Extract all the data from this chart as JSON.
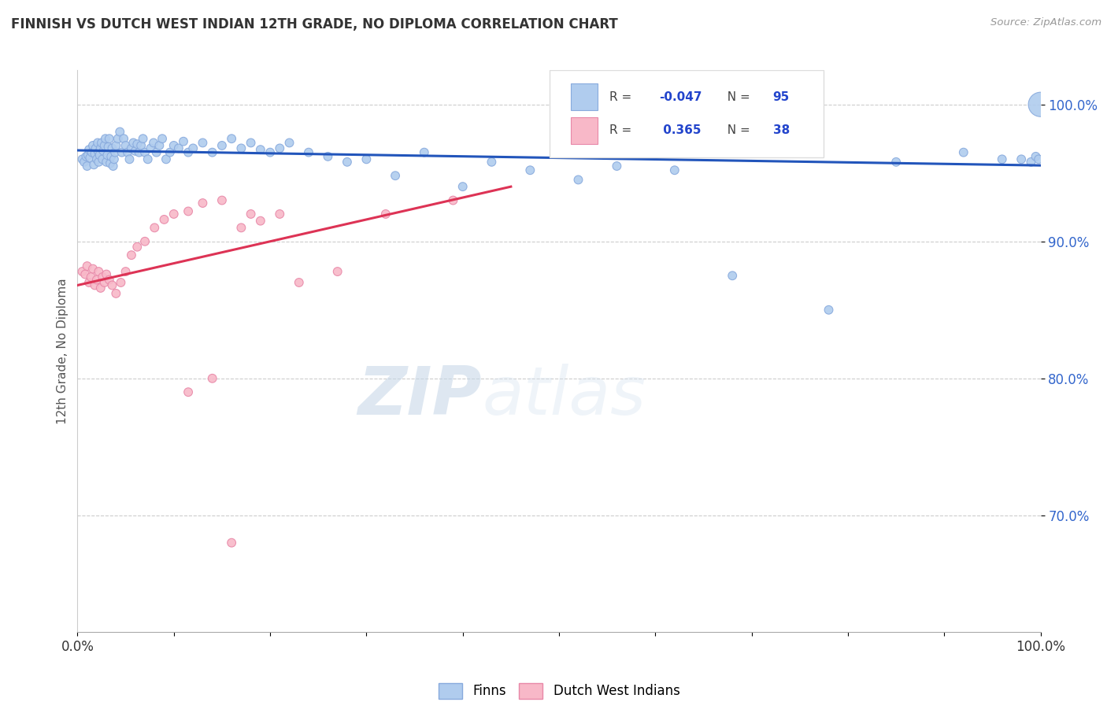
{
  "title": "FINNISH VS DUTCH WEST INDIAN 12TH GRADE, NO DIPLOMA CORRELATION CHART",
  "source": "Source: ZipAtlas.com",
  "ylabel": "12th Grade, No Diploma",
  "xlim": [
    0.0,
    1.0
  ],
  "ylim": [
    0.615,
    1.025
  ],
  "yticks": [
    0.7,
    0.8,
    0.9,
    1.0
  ],
  "xticks": [
    0.0,
    0.1,
    0.2,
    0.3,
    0.4,
    0.5,
    0.6,
    0.7,
    0.8,
    0.9,
    1.0
  ],
  "xtick_labels": [
    "0.0%",
    "",
    "",
    "",
    "",
    "",
    "",
    "",
    "",
    "",
    "100.0%"
  ],
  "background_color": "#ffffff",
  "grid_color": "#cccccc",
  "finn_color": "#b0ccee",
  "finn_edge_color": "#88aadd",
  "dutch_color": "#f8b8c8",
  "dutch_edge_color": "#e888a8",
  "finn_line_color": "#2255bb",
  "dutch_line_color": "#dd3355",
  "R_finn": -0.047,
  "N_finn": 95,
  "R_dutch": 0.365,
  "N_dutch": 38,
  "watermark_zip": "ZIP",
  "watermark_atlas": "atlas",
  "finn_scatter_x": [
    0.005,
    0.007,
    0.009,
    0.01,
    0.011,
    0.012,
    0.013,
    0.015,
    0.016,
    0.017,
    0.018,
    0.019,
    0.02,
    0.021,
    0.022,
    0.022,
    0.023,
    0.024,
    0.025,
    0.026,
    0.027,
    0.028,
    0.029,
    0.03,
    0.031,
    0.032,
    0.033,
    0.034,
    0.035,
    0.036,
    0.037,
    0.038,
    0.039,
    0.04,
    0.042,
    0.044,
    0.046,
    0.048,
    0.05,
    0.052,
    0.054,
    0.056,
    0.058,
    0.06,
    0.062,
    0.064,
    0.066,
    0.068,
    0.07,
    0.073,
    0.076,
    0.079,
    0.082,
    0.085,
    0.088,
    0.092,
    0.096,
    0.1,
    0.105,
    0.11,
    0.115,
    0.12,
    0.13,
    0.14,
    0.15,
    0.16,
    0.17,
    0.18,
    0.19,
    0.2,
    0.21,
    0.22,
    0.24,
    0.26,
    0.28,
    0.3,
    0.33,
    0.36,
    0.4,
    0.43,
    0.47,
    0.52,
    0.56,
    0.62,
    0.68,
    0.72,
    0.78,
    0.85,
    0.92,
    0.96,
    0.98,
    0.99,
    0.995,
    0.998,
    1.0
  ],
  "finn_scatter_y": [
    0.96,
    0.958,
    0.962,
    0.955,
    0.963,
    0.967,
    0.961,
    0.965,
    0.97,
    0.956,
    0.964,
    0.968,
    0.96,
    0.972,
    0.965,
    0.958,
    0.963,
    0.968,
    0.972,
    0.96,
    0.966,
    0.97,
    0.975,
    0.958,
    0.963,
    0.969,
    0.975,
    0.957,
    0.962,
    0.968,
    0.955,
    0.96,
    0.965,
    0.97,
    0.975,
    0.98,
    0.965,
    0.975,
    0.97,
    0.965,
    0.96,
    0.968,
    0.972,
    0.966,
    0.971,
    0.965,
    0.97,
    0.975,
    0.965,
    0.96,
    0.968,
    0.972,
    0.965,
    0.97,
    0.975,
    0.96,
    0.965,
    0.97,
    0.968,
    0.973,
    0.965,
    0.968,
    0.972,
    0.965,
    0.97,
    0.975,
    0.968,
    0.972,
    0.967,
    0.965,
    0.968,
    0.972,
    0.965,
    0.962,
    0.958,
    0.96,
    0.948,
    0.965,
    0.94,
    0.958,
    0.952,
    0.945,
    0.955,
    0.952,
    0.875,
    0.965,
    0.85,
    0.958,
    0.965,
    0.96,
    0.96,
    0.958,
    0.962,
    0.96,
    1.0
  ],
  "finn_scatter_sizes": [
    60,
    60,
    60,
    60,
    60,
    60,
    60,
    60,
    60,
    60,
    60,
    60,
    60,
    60,
    60,
    60,
    60,
    60,
    60,
    60,
    60,
    60,
    60,
    60,
    60,
    60,
    60,
    60,
    60,
    60,
    60,
    60,
    60,
    60,
    60,
    60,
    60,
    60,
    60,
    60,
    60,
    60,
    60,
    60,
    60,
    60,
    60,
    60,
    60,
    60,
    60,
    60,
    60,
    60,
    60,
    60,
    60,
    60,
    60,
    60,
    60,
    60,
    60,
    60,
    60,
    60,
    60,
    60,
    60,
    60,
    60,
    60,
    60,
    60,
    60,
    60,
    60,
    60,
    60,
    60,
    60,
    60,
    60,
    60,
    60,
    60,
    60,
    60,
    60,
    60,
    60,
    60,
    60,
    60,
    500
  ],
  "dutch_scatter_x": [
    0.005,
    0.008,
    0.01,
    0.012,
    0.014,
    0.016,
    0.018,
    0.02,
    0.022,
    0.024,
    0.026,
    0.028,
    0.03,
    0.033,
    0.036,
    0.04,
    0.045,
    0.05,
    0.056,
    0.062,
    0.07,
    0.08,
    0.09,
    0.1,
    0.115,
    0.13,
    0.15,
    0.17,
    0.19,
    0.21,
    0.115,
    0.14,
    0.16,
    0.18,
    0.23,
    0.27,
    0.32,
    0.39
  ],
  "dutch_scatter_y": [
    0.878,
    0.876,
    0.882,
    0.87,
    0.874,
    0.88,
    0.868,
    0.872,
    0.878,
    0.866,
    0.874,
    0.87,
    0.876,
    0.872,
    0.868,
    0.862,
    0.87,
    0.878,
    0.89,
    0.896,
    0.9,
    0.91,
    0.916,
    0.92,
    0.922,
    0.928,
    0.93,
    0.91,
    0.915,
    0.92,
    0.79,
    0.8,
    0.68,
    0.92,
    0.87,
    0.878,
    0.92,
    0.93
  ],
  "dutch_scatter_sizes": [
    60,
    60,
    60,
    60,
    60,
    60,
    60,
    60,
    60,
    60,
    60,
    60,
    60,
    60,
    60,
    60,
    60,
    60,
    60,
    60,
    60,
    60,
    60,
    60,
    60,
    60,
    60,
    60,
    60,
    60,
    60,
    60,
    60,
    60,
    60,
    60,
    60,
    60
  ],
  "finn_trend_x": [
    0.0,
    1.0
  ],
  "finn_trend_y": [
    0.9665,
    0.9555
  ],
  "dutch_trend_x": [
    0.0,
    0.45
  ],
  "dutch_trend_y": [
    0.868,
    0.94
  ]
}
